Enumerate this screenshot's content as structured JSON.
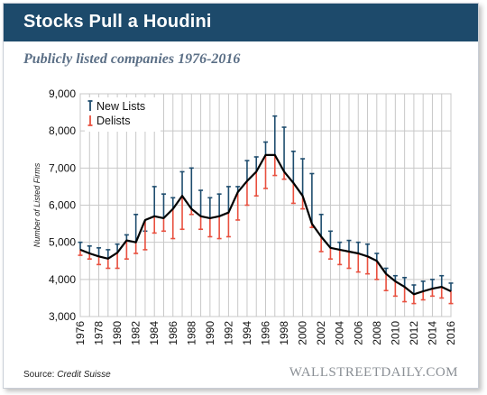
{
  "header": {
    "title": "Stocks Pull a Houdini"
  },
  "subtitle": "Publicly listed companies 1976-2016",
  "footer": {
    "source_prefix": "Source:",
    "source_name": "Credit Suisse",
    "brand": "WALLSTREETDAILY.COM"
  },
  "colors": {
    "header_bg": "#1d4a6b",
    "new_lists": "#1f4d6e",
    "delists": "#e8503f",
    "line": "#000000",
    "grid": "#c8c8c8"
  },
  "chart_data": {
    "type": "line",
    "ylabel": "Number of Listed Firms",
    "ylim": [
      3000,
      9000
    ],
    "yticks": [
      3000,
      4000,
      5000,
      6000,
      7000,
      8000,
      9000
    ],
    "ytick_labels": [
      "3,000",
      "4,000",
      "5,000",
      "6,000",
      "7,000",
      "8,000",
      "9,000"
    ],
    "xtick_labels": [
      "1976",
      "1978",
      "1980",
      "1982",
      "1984",
      "1986",
      "1988",
      "1990",
      "1992",
      "1994",
      "1996",
      "1998",
      "2000",
      "2002",
      "2004",
      "2006",
      "2008",
      "2010",
      "2012",
      "2014",
      "2016"
    ],
    "legend": [
      {
        "name": "New Lists",
        "color": "#1f4d6e"
      },
      {
        "name": "Delists",
        "color": "#e8503f"
      }
    ],
    "legend_position": "top-left",
    "grid": true,
    "x": [
      1976,
      1977,
      1978,
      1979,
      1980,
      1981,
      1982,
      1983,
      1984,
      1985,
      1986,
      1987,
      1988,
      1989,
      1990,
      1991,
      1992,
      1993,
      1994,
      1995,
      1996,
      1997,
      1998,
      1999,
      2000,
      2001,
      2002,
      2003,
      2004,
      2005,
      2006,
      2007,
      2008,
      2009,
      2010,
      2011,
      2012,
      2013,
      2014,
      2015,
      2016
    ],
    "series": [
      {
        "name": "Listed Firms",
        "values": [
          4800,
          4700,
          4620,
          4560,
          4720,
          5050,
          5000,
          5600,
          5700,
          5650,
          5900,
          6250,
          5900,
          5700,
          5650,
          5700,
          5800,
          6350,
          6650,
          6900,
          7350,
          7350,
          6900,
          6600,
          6250,
          5500,
          5150,
          4850,
          4800,
          4750,
          4700,
          4620,
          4500,
          4150,
          3950,
          3800,
          3600,
          3680,
          3750,
          3800,
          3680
        ]
      },
      {
        "name": "New Lists",
        "values": [
          5000,
          4900,
          4850,
          4800,
          4950,
          5200,
          5750,
          5300,
          6500,
          6300,
          6200,
          6900,
          7000,
          6400,
          6200,
          6300,
          6500,
          6500,
          7200,
          7300,
          7700,
          8400,
          8100,
          7450,
          7250,
          6850,
          5750,
          5300,
          5000,
          5050,
          5000,
          4950,
          4700,
          4300,
          4100,
          4050,
          3850,
          3950,
          4000,
          4100,
          3900
        ]
      },
      {
        "name": "Delists",
        "values": [
          4650,
          4550,
          4400,
          4300,
          4300,
          4550,
          4700,
          4800,
          5250,
          5300,
          5100,
          5350,
          5750,
          5350,
          5150,
          5100,
          5150,
          5600,
          6000,
          6250,
          6450,
          6800,
          6700,
          6050,
          5900,
          5400,
          4750,
          4550,
          4400,
          4300,
          4200,
          4150,
          4000,
          3700,
          3550,
          3400,
          3350,
          3450,
          3550,
          3500,
          3350
        ]
      }
    ]
  }
}
